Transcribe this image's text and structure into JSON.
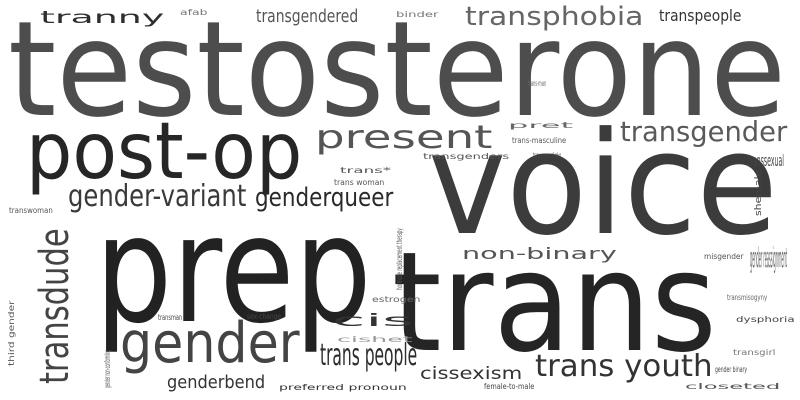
{
  "words": [
    {
      "text": "testosterone",
      "color": "#4d4d4d"
    },
    {
      "text": "voice",
      "color": "#3c3c3c"
    },
    {
      "text": "prep",
      "color": "#222222"
    },
    {
      "text": "trans",
      "color": "#252525"
    },
    {
      "text": "post-op",
      "color": "#262626"
    },
    {
      "text": "gender",
      "color": "#444444"
    },
    {
      "text": "present",
      "color": "#555555"
    },
    {
      "text": "transgender",
      "color": "#5a5a5a"
    },
    {
      "text": "transphobia",
      "color": "#666666"
    },
    {
      "text": "gender-variant",
      "color": "#3a3a3a"
    },
    {
      "text": "genderqueer",
      "color": "#2a2a2a"
    },
    {
      "text": "trans youth",
      "color": "#333333"
    },
    {
      "text": "trans people",
      "color": "#2c2c2c"
    },
    {
      "text": "tranny",
      "color": "#2f2f2f"
    },
    {
      "text": "transgendered",
      "color": "#555555"
    },
    {
      "text": "transpeople",
      "color": "#333333"
    },
    {
      "text": "non-binary",
      "color": "#555555"
    },
    {
      "text": "gender reassignment",
      "color": "#666666"
    },
    {
      "text": "cis",
      "color": "#333333"
    },
    {
      "text": "cissexism",
      "color": "#333333"
    },
    {
      "text": "genderbend",
      "color": "#333333"
    },
    {
      "text": "transsexual",
      "color": "#444444"
    },
    {
      "text": "afab",
      "color": "#777777"
    },
    {
      "text": "binder",
      "color": "#777777"
    },
    {
      "text": "trans-man",
      "color": "#666666"
    },
    {
      "text": "pret",
      "color": "#666666"
    },
    {
      "text": "trans-masculine",
      "color": "#555555"
    },
    {
      "text": "transgenders",
      "color": "#555555"
    },
    {
      "text": "trans woman of color",
      "color": "#444444"
    },
    {
      "text": "trans*",
      "color": "#555555"
    },
    {
      "text": "trans woman",
      "color": "#555555"
    },
    {
      "text": "transwoman",
      "color": "#555555"
    },
    {
      "text": "misgender",
      "color": "#555555"
    },
    {
      "text": "estrogen",
      "color": "#666666"
    },
    {
      "text": "transmisogyny",
      "color": "#666666"
    },
    {
      "text": "transman",
      "color": "#444444"
    },
    {
      "text": "sex-change",
      "color": "#444444"
    },
    {
      "text": "dysphoria",
      "color": "#444444"
    },
    {
      "text": "cishet",
      "color": "#999999"
    },
    {
      "text": "transgirl",
      "color": "#777777"
    },
    {
      "text": "gender binary",
      "color": "#444444"
    },
    {
      "text": "preferred pronoun",
      "color": "#333333"
    },
    {
      "text": "female-to-male",
      "color": "#444444"
    },
    {
      "text": "closeted",
      "color": "#555555"
    },
    {
      "text": "transdude",
      "color": "#444444"
    },
    {
      "text": "shemale",
      "color": "#444444"
    },
    {
      "text": "hormone replacement therapy",
      "color": "#555555"
    },
    {
      "text": "third gender",
      "color": "#555555"
    },
    {
      "text": "gender non-conforming",
      "color": "#555555"
    }
  ]
}
